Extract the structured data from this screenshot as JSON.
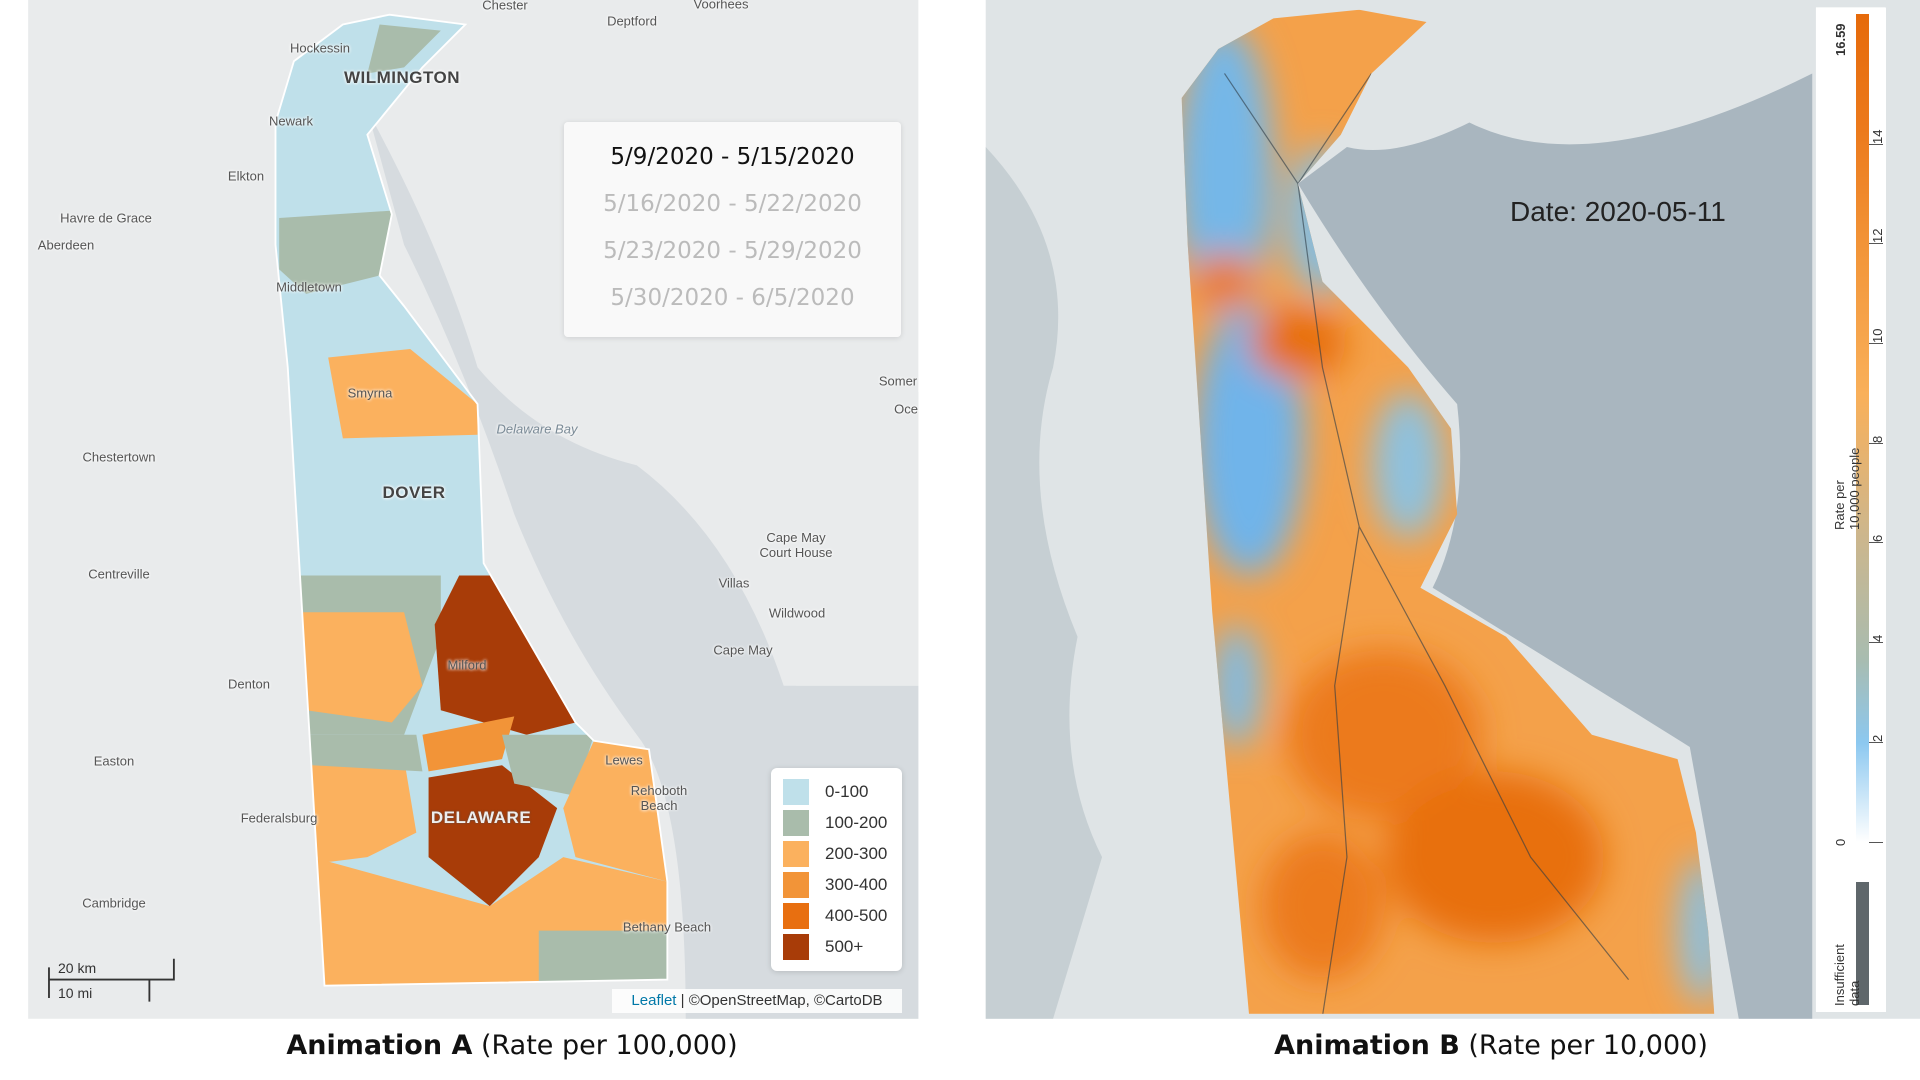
{
  "animation_a": {
    "caption_title": "Animation A",
    "caption_sub": "(Rate per 100,000)",
    "dates": [
      "5/9/2020 - 5/15/2020",
      "5/16/2020 - 5/22/2020",
      "5/23/2020 - 5/29/2020",
      "5/30/2020 - 6/5/2020"
    ],
    "active_date_index": 0,
    "place_labels": [
      "Chester",
      "Deptford",
      "Voorhees",
      "Hockessin",
      "WILMINGTON",
      "Newark",
      "Elkton",
      "Havre de Grace",
      "Aberdeen",
      "Middletown",
      "Smyrna",
      "Delaware Bay",
      "Chestertown",
      "DOVER",
      "Centreville",
      "Cape May Court House",
      "Villas",
      "Wildwood",
      "Cape May",
      "Milford",
      "Denton",
      "Lewes",
      "Rehoboth Beach",
      "Easton",
      "Federalsburg",
      "DELAWARE",
      "Cambridge",
      "Bethany Beach",
      "Somer",
      "Oce"
    ],
    "legend": [
      {
        "label": "0-100",
        "color": "#bfe0ea"
      },
      {
        "label": "100-200",
        "color": "#a9bcab"
      },
      {
        "label": "200-300",
        "color": "#fbb15e"
      },
      {
        "label": "300-400",
        "color": "#f29438"
      },
      {
        "label": "400-500",
        "color": "#e86f10"
      },
      {
        "label": "500+",
        "color": "#a83c08"
      }
    ],
    "scale": {
      "km": "20 km",
      "mi": "10 mi"
    },
    "attribution": {
      "link": "Leaflet",
      "text": " | ©OpenStreetMap, ©CartoDB"
    }
  },
  "animation_b": {
    "caption_title": "Animation B",
    "caption_sub": "(Rate per 10,000)",
    "date_label": "Date: 2020-05-11",
    "colorbar": {
      "title": "Rate per 10,000 people",
      "min": 0,
      "max": 16.59,
      "ticks": [
        "0",
        "2",
        "4",
        "6",
        "8",
        "10",
        "12",
        "14",
        "16.59"
      ],
      "insufficient_label": "Insufficient data",
      "insufficient_color": "#5f676b"
    }
  }
}
